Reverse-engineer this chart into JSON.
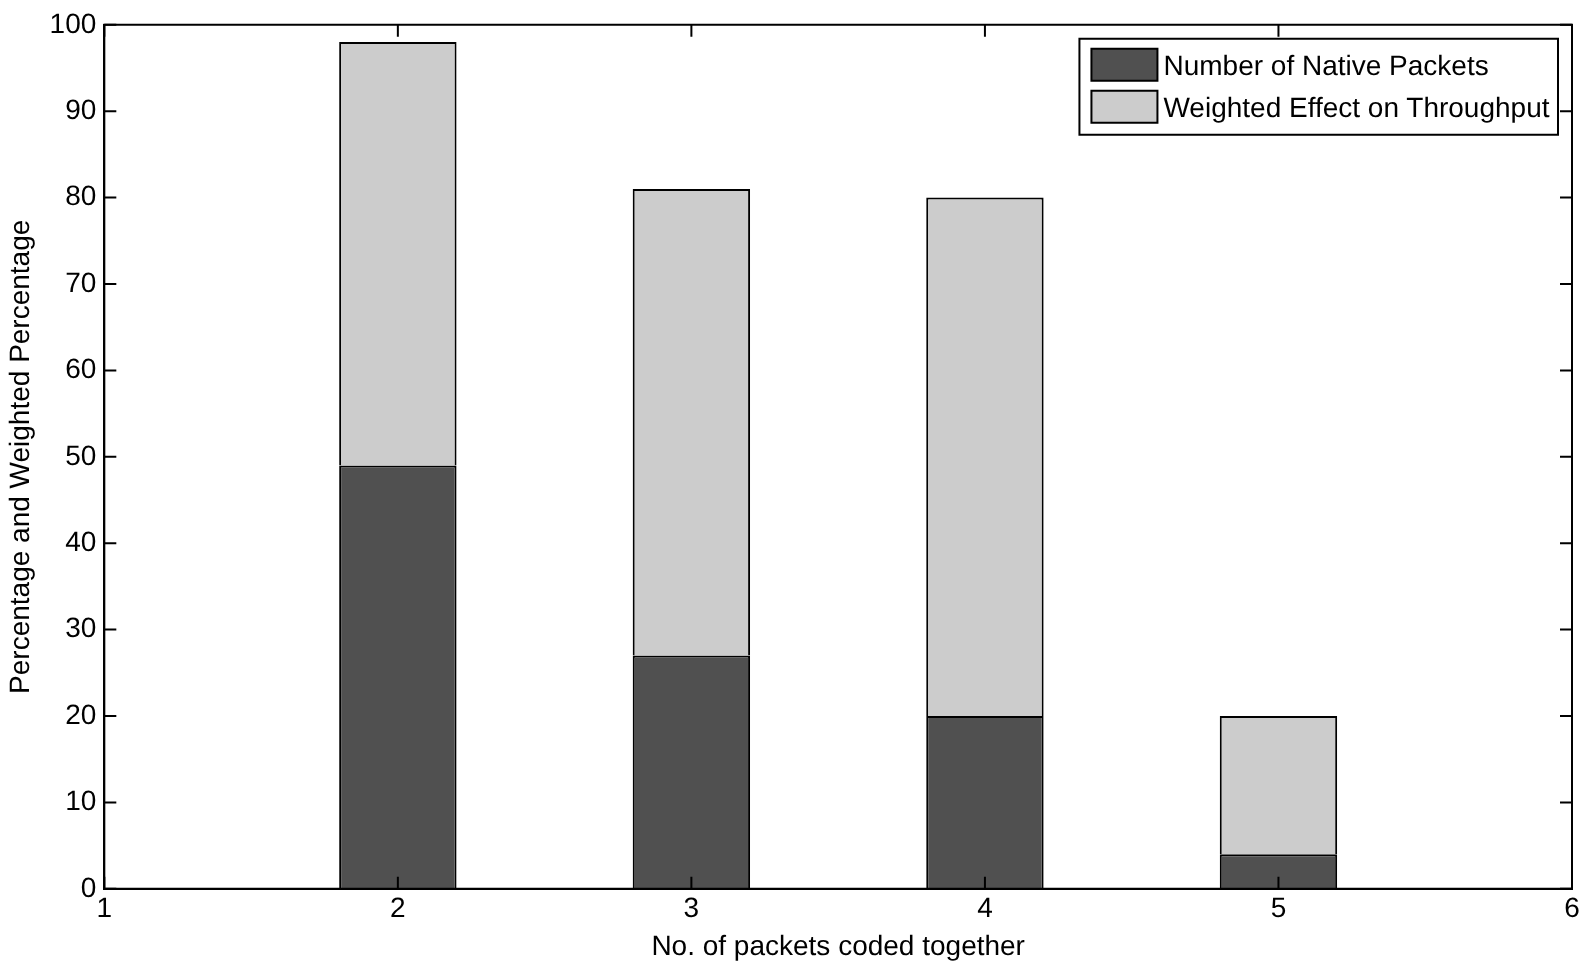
{
  "chart_data": {
    "type": "bar",
    "stacked": true,
    "xlabel": "No. of packets coded together",
    "ylabel": "Percentage and Weighted Percentage",
    "x": [
      2,
      3,
      4,
      5
    ],
    "xlim": [
      1,
      6
    ],
    "xticks": [
      1,
      2,
      3,
      4,
      5,
      6
    ],
    "ylim": [
      0,
      100
    ],
    "yticks": [
      0,
      10,
      20,
      30,
      40,
      50,
      60,
      70,
      80,
      90,
      100
    ],
    "legend": "top right",
    "grid": false,
    "series": [
      {
        "name": "Number of Native Packets",
        "color": "#505050",
        "values": [
          49,
          27,
          20,
          4
        ]
      },
      {
        "name": "Weighted Effect on Throughput",
        "color": "#cccccc",
        "values": [
          49,
          54,
          60,
          16
        ]
      }
    ]
  }
}
